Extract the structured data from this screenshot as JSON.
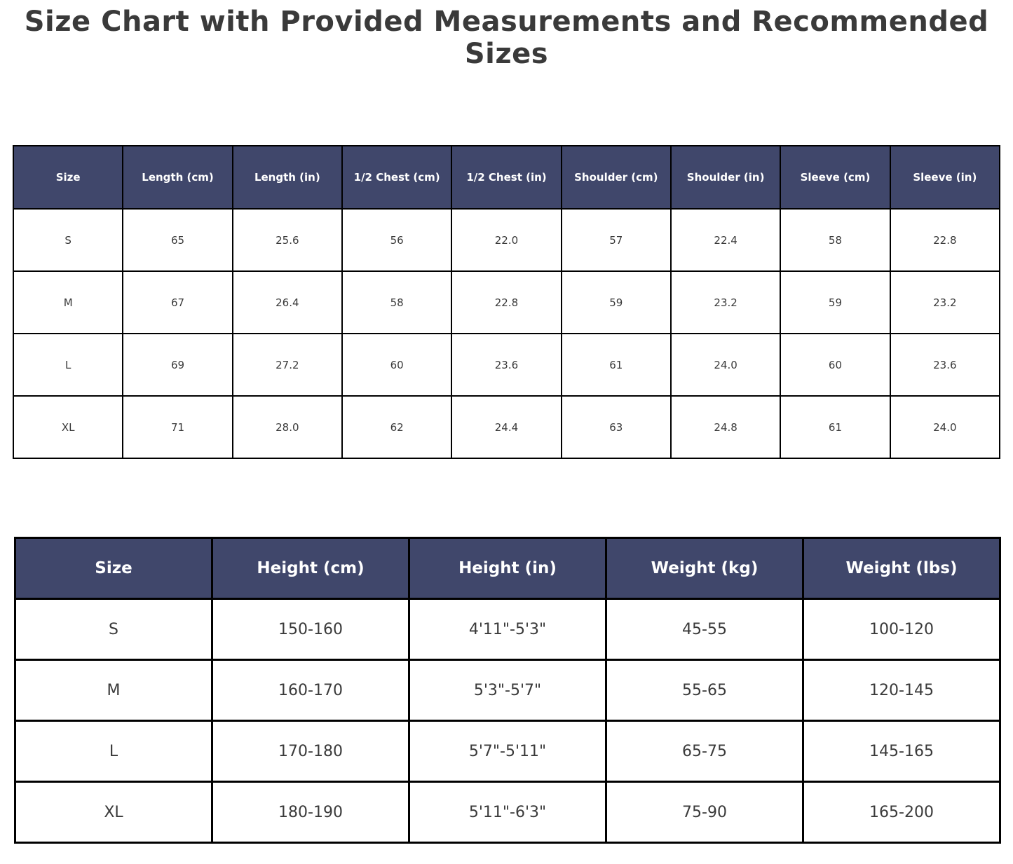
{
  "title": "Size Chart with Provided Measurements and Recommended Sizes",
  "colors": {
    "header_bg": "#40476B",
    "header_text": "#ffffff",
    "cell_text": "#3a3a3a",
    "border": "#000000",
    "title_text": "#3a3a3a",
    "background": "#ffffff"
  },
  "chart_data": [
    {
      "type": "table",
      "columns": [
        "Size",
        "Length (cm)",
        "Length (in)",
        "1/2 Chest (cm)",
        "1/2 Chest (in)",
        "Shoulder (cm)",
        "Shoulder (in)",
        "Sleeve (cm)",
        "Sleeve (in)"
      ],
      "rows": [
        [
          "S",
          "65",
          "25.6",
          "56",
          "22.0",
          "57",
          "22.4",
          "58",
          "22.8"
        ],
        [
          "M",
          "67",
          "26.4",
          "58",
          "22.8",
          "59",
          "23.2",
          "59",
          "23.2"
        ],
        [
          "L",
          "69",
          "27.2",
          "60",
          "23.6",
          "61",
          "24.0",
          "60",
          "23.6"
        ],
        [
          "XL",
          "71",
          "28.0",
          "62",
          "24.4",
          "63",
          "24.8",
          "61",
          "24.0"
        ]
      ]
    },
    {
      "type": "table",
      "columns": [
        "Size",
        "Height (cm)",
        "Height (in)",
        "Weight (kg)",
        "Weight (lbs)"
      ],
      "rows": [
        [
          "S",
          "150-160",
          "4'11\"-5'3\"",
          "45-55",
          "100-120"
        ],
        [
          "M",
          "160-170",
          "5'3\"-5'7\"",
          "55-65",
          "120-145"
        ],
        [
          "L",
          "170-180",
          "5'7\"-5'11\"",
          "65-75",
          "145-165"
        ],
        [
          "XL",
          "180-190",
          "5'11\"-6'3\"",
          "75-90",
          "165-200"
        ]
      ]
    }
  ]
}
